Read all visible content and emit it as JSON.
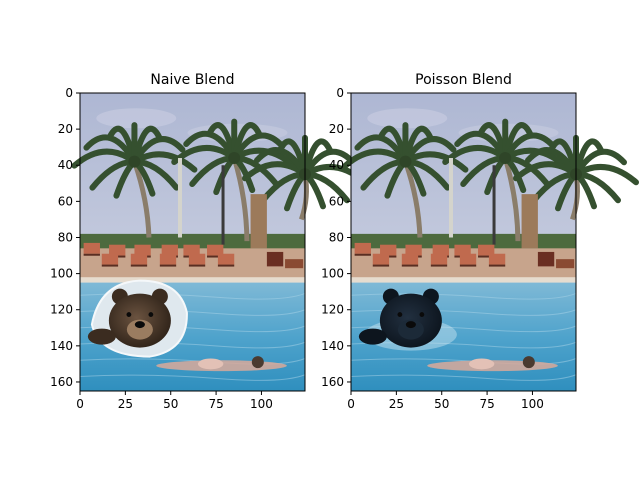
{
  "chart_data": [
    {
      "type": "image",
      "title": "Naive Blend",
      "xlim": [
        0,
        124
      ],
      "ylim": [
        165,
        0
      ],
      "xticks": [
        0,
        25,
        50,
        75,
        100
      ],
      "yticks": [
        0,
        20,
        40,
        60,
        80,
        100,
        120,
        140,
        160
      ],
      "image_content": "palm-trees-pool-swimmer-bear-pasted-with-visible-border"
    },
    {
      "type": "image",
      "title": "Poisson Blend",
      "xlim": [
        0,
        124
      ],
      "ylim": [
        165,
        0
      ],
      "xticks": [
        0,
        25,
        50,
        75,
        100
      ],
      "yticks": [
        0,
        20,
        40,
        60,
        80,
        100,
        120,
        140,
        160
      ],
      "image_content": "palm-trees-pool-swimmer-bear-seamlessly-blended"
    }
  ]
}
